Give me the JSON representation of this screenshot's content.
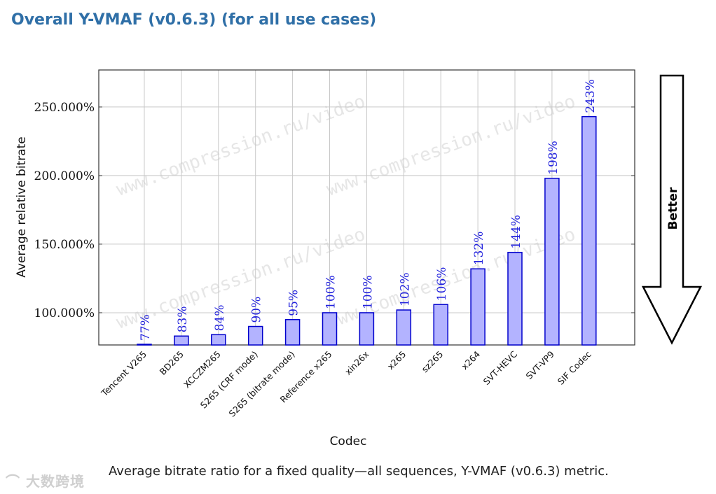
{
  "title": "Overall Y-VMAF (v0.6.3) (for all use cases)",
  "caption": "Average bitrate ratio for a fixed quality—all sequences, Y-VMAF (v0.6.3) metric.",
  "watermark": "www.compression.ru/video",
  "logo": "大数跨境",
  "better_label": "Better",
  "colors": {
    "bar_fill": "#b3b3ff",
    "bar_stroke": "#0000cc",
    "label": "#2222dd",
    "title": "#2f6fa7"
  },
  "chart_data": {
    "type": "bar",
    "title": "",
    "xlabel": "Codec",
    "ylabel": "Average relative bitrate",
    "ylim": [
      76.5,
      277
    ],
    "yticks": [
      100,
      150,
      200,
      250
    ],
    "ytick_labels": [
      "100.000%",
      "150.000%",
      "200.000%",
      "250.000%"
    ],
    "grid": true,
    "categories": [
      "Tencent V265",
      "BD265",
      "XCCZM265",
      "S265 (CRF mode)",
      "S265 (bitrate mode)",
      "Reference x265",
      "xin26x",
      "x265",
      "sz265",
      "x264",
      "SVT-HEVC",
      "SVT-VP9",
      "SIF Codec"
    ],
    "values": [
      77,
      83,
      84,
      90,
      95,
      100,
      100,
      102,
      106,
      132,
      144,
      198,
      243
    ],
    "data_labels": [
      "77%",
      "83%",
      "84%",
      "90%",
      "95%",
      "100%",
      "100%",
      "102%",
      "106%",
      "132%",
      "144%",
      "198%",
      "243%"
    ]
  }
}
